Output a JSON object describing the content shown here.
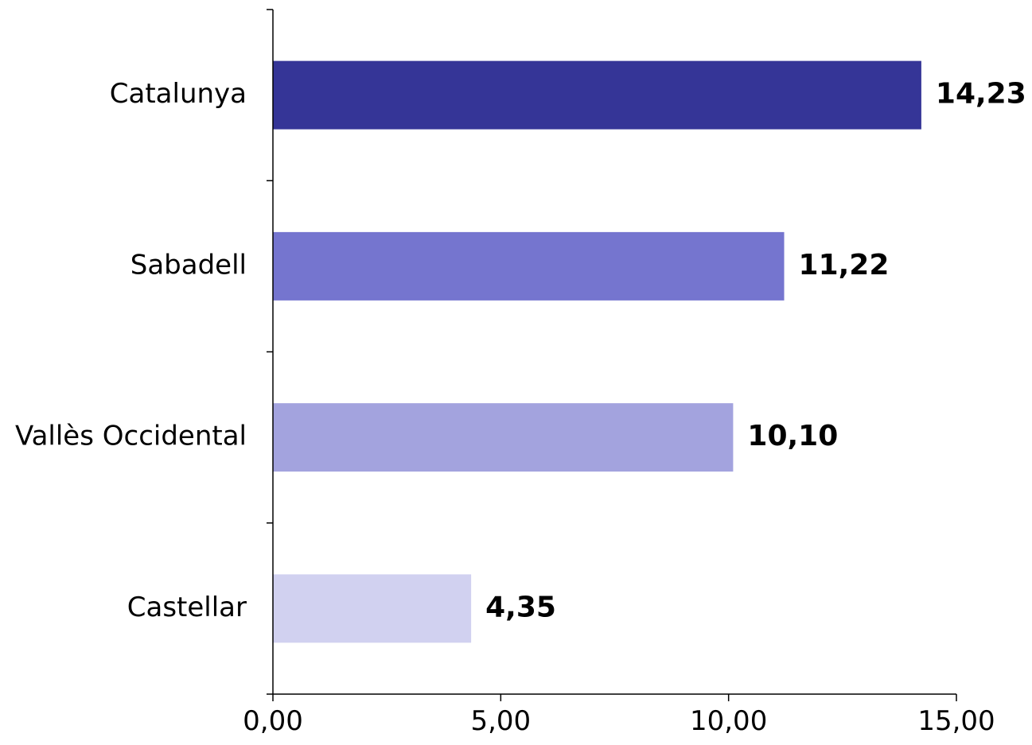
{
  "chart_data": {
    "type": "bar",
    "orientation": "horizontal",
    "categories": [
      "Catalunya",
      "Sabadell",
      "Vallès Occidental",
      "Castellar"
    ],
    "values": [
      14.23,
      11.22,
      10.1,
      4.35
    ],
    "value_labels": [
      "14,23",
      "11,22",
      "10,10",
      "4,35"
    ],
    "colors": [
      "#353597",
      "#7575CF",
      "#A3A3DE",
      "#D1D1F0"
    ],
    "xlim": [
      0,
      15
    ],
    "xticks": [
      0,
      5,
      10,
      15
    ],
    "xtick_labels": [
      "0,00",
      "5,00",
      "10,00",
      "15,00"
    ],
    "title": "",
    "xlabel": "",
    "ylabel": "",
    "grid": false,
    "legend": "none"
  }
}
